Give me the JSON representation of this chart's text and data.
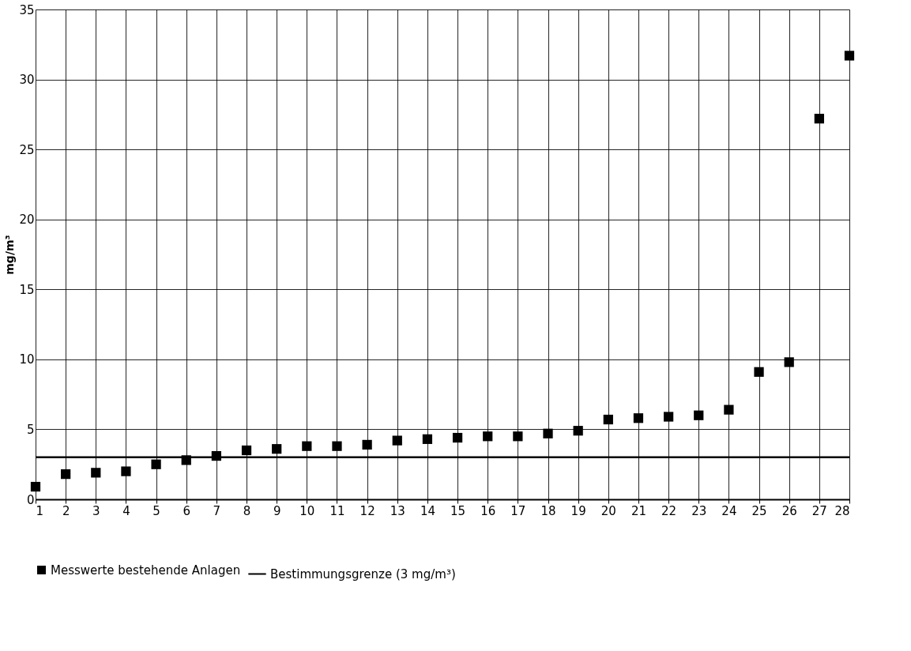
{
  "chart_data": {
    "type": "scatter",
    "ylabel": "mg/m³",
    "x": [
      1,
      2,
      3,
      4,
      5,
      6,
      7,
      8,
      9,
      10,
      11,
      12,
      13,
      14,
      15,
      16,
      17,
      18,
      19,
      20,
      21,
      22,
      23,
      24,
      25,
      26,
      27,
      28
    ],
    "series": [
      {
        "name": "Messwerte bestehende Anlagen",
        "color": "#000000",
        "values": [
          0.9,
          1.8,
          1.9,
          2.0,
          2.5,
          2.8,
          3.1,
          3.5,
          3.6,
          3.8,
          3.8,
          3.9,
          4.2,
          4.3,
          4.4,
          4.5,
          4.5,
          4.7,
          4.9,
          5.7,
          5.8,
          5.9,
          6.0,
          6.4,
          9.1,
          9.8,
          27.2,
          31.7
        ]
      }
    ],
    "marker": "square",
    "xlim": [
      1,
      28
    ],
    "xticks": [
      1,
      2,
      3,
      4,
      5,
      6,
      7,
      8,
      9,
      10,
      11,
      12,
      13,
      14,
      15,
      16,
      17,
      18,
      19,
      20,
      21,
      22,
      23,
      24,
      25,
      26,
      27,
      28
    ],
    "ylim": [
      0,
      35
    ],
    "yticks": [
      0,
      5,
      10,
      15,
      20,
      25,
      30,
      35
    ],
    "ref_lines": [
      {
        "axis": "y",
        "value": 3,
        "label": "Bestimmungsgrenze  (3 mg/m³)",
        "color": "#000000",
        "line_style": "solid"
      }
    ],
    "grid": true,
    "legend": "bottom"
  }
}
